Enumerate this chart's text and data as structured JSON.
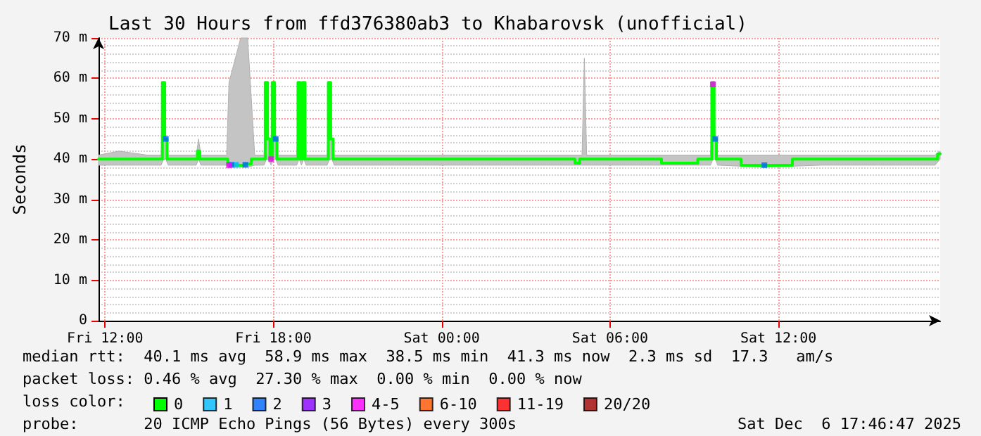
{
  "chart_data": {
    "type": "line",
    "title": "Last 30 Hours from ffd376380ab3 to Khabarovsk (unofficial)",
    "ylabel": "Seconds",
    "x": [
      "2025-12-05T11:46",
      "2025-12-05T12:30",
      "2025-12-05T13:30",
      "2025-12-05T14:00",
      "2025-12-05T14:05",
      "2025-12-05T14:10",
      "2025-12-05T14:15",
      "2025-12-05T15:15",
      "2025-12-05T15:20",
      "2025-12-05T15:25",
      "2025-12-05T16:20",
      "2025-12-05T16:25",
      "2025-12-05T16:50",
      "2025-12-05T17:05",
      "2025-12-05T17:20",
      "2025-12-05T17:40",
      "2025-12-05T17:45",
      "2025-12-05T17:50",
      "2025-12-05T17:55",
      "2025-12-05T18:00",
      "2025-12-05T18:05",
      "2025-12-05T18:10",
      "2025-12-05T18:50",
      "2025-12-05T18:55",
      "2025-12-05T19:00",
      "2025-12-05T19:05",
      "2025-12-05T19:10",
      "2025-12-05T19:55",
      "2025-12-05T20:00",
      "2025-12-05T20:05",
      "2025-12-05T20:10",
      "2025-12-05T22:00",
      "2025-12-06T00:00",
      "2025-12-06T02:00",
      "2025-12-06T04:40",
      "2025-12-06T04:50",
      "2025-12-06T05:00",
      "2025-12-06T05:05",
      "2025-12-06T05:10",
      "2025-12-06T07:00",
      "2025-12-06T08:40",
      "2025-12-06T09:35",
      "2025-12-06T09:40",
      "2025-12-06T09:45",
      "2025-12-06T09:50",
      "2025-12-06T11:30",
      "2025-12-06T13:30",
      "2025-12-06T15:30",
      "2025-12-06T17:35",
      "2025-12-06T17:46"
    ],
    "series": [
      {
        "name": "0",
        "color": "#00ff00",
        "marker": "none",
        "values": [
          40,
          40,
          40,
          40,
          59,
          45,
          40,
          40,
          42,
          40,
          40,
          38.6,
          38.5,
          38.8,
          40,
          40,
          59,
          45,
          40,
          59,
          45,
          40,
          40,
          59,
          40,
          59,
          40,
          40,
          59,
          45,
          40,
          40,
          40,
          40,
          40,
          39,
          40,
          40,
          40,
          40,
          39,
          40,
          59,
          45,
          40,
          38.5,
          40,
          40,
          40,
          41.3
        ],
        "lower": [
          38.5,
          38.5,
          38.5,
          38.5,
          40,
          40,
          38.5,
          38.5,
          40,
          38.5,
          38.5,
          38,
          38,
          38,
          38.5,
          38.5,
          40,
          40,
          38.5,
          40,
          40,
          38.5,
          38.5,
          40,
          38.5,
          40,
          38.5,
          38.5,
          40,
          40,
          38.5,
          38.5,
          38.5,
          38.5,
          38.5,
          38.5,
          38.5,
          38.5,
          38.5,
          38.5,
          38.5,
          38.5,
          40,
          40,
          38.5,
          38,
          38.5,
          38.5,
          38.5,
          40
        ],
        "upper": [
          41,
          42,
          41,
          41,
          59,
          45,
          41,
          41,
          45,
          41,
          41,
          59,
          70,
          70,
          41,
          41,
          59,
          45,
          41,
          59,
          45,
          41,
          41,
          59,
          41,
          59,
          41,
          41,
          59,
          45,
          41,
          41,
          41,
          41,
          41,
          41,
          41,
          65,
          41,
          41,
          41,
          41,
          59,
          45,
          41,
          41,
          41,
          41,
          41,
          42
        ]
      },
      {
        "name": "1",
        "type": "scatter",
        "color": "#00bbff",
        "x": [
          "2025-12-05T16:40"
        ],
        "values": [
          38.6
        ]
      },
      {
        "name": "2",
        "type": "scatter",
        "color": "#0066ff",
        "x": [
          "2025-12-05T14:10",
          "2025-12-05T16:30",
          "2025-12-05T17:00",
          "2025-12-05T18:05",
          "2025-12-06T09:45",
          "2025-12-06T11:30"
        ],
        "values": [
          45,
          38.6,
          38.6,
          45,
          45,
          38.5
        ]
      },
      {
        "name": "3",
        "type": "scatter",
        "color": "#8800ff",
        "values": [
          null,
          null,
          null,
          null,
          null,
          null,
          null,
          null,
          null,
          null,
          null,
          null,
          null,
          null,
          null,
          null,
          null,
          null,
          null,
          null,
          null,
          null,
          null,
          null,
          null,
          null,
          null,
          null,
          null,
          null,
          null,
          null,
          null,
          null,
          null,
          null,
          null,
          null,
          null,
          null,
          null,
          null,
          null,
          null,
          null,
          null,
          null,
          null,
          null,
          null
        ]
      },
      {
        "name": "4-5",
        "type": "scatter",
        "color": "#ff00ff",
        "x": [
          "2025-12-05T16:25",
          "2025-12-05T17:55",
          "2025-12-06T09:40"
        ],
        "values": [
          38.5,
          40,
          58.5
        ]
      },
      {
        "name": "6-10",
        "type": "scatter",
        "color": "#ff5500",
        "values": [
          null,
          null,
          null,
          null,
          null,
          null,
          null,
          null,
          null,
          null,
          null,
          null,
          null,
          null,
          null,
          null,
          null,
          null,
          null,
          null,
          null,
          null,
          null,
          null,
          null,
          null,
          null,
          null,
          null,
          null,
          null,
          null,
          null,
          null,
          null,
          null,
          null,
          null,
          null,
          null,
          null,
          null,
          null,
          null,
          null,
          null,
          null,
          null,
          null,
          null
        ]
      },
      {
        "name": "11-19",
        "type": "scatter",
        "color": "#ff0000",
        "values": [
          null,
          null,
          null,
          null,
          null,
          null,
          null,
          null,
          null,
          null,
          null,
          null,
          null,
          null,
          null,
          null,
          null,
          null,
          null,
          null,
          null,
          null,
          null,
          null,
          null,
          null,
          null,
          null,
          null,
          null,
          null,
          null,
          null,
          null,
          null,
          null,
          null,
          null,
          null,
          null,
          null,
          null,
          null,
          null,
          null,
          null,
          null,
          null,
          null,
          null
        ]
      },
      {
        "name": "20/20",
        "type": "scatter",
        "color": "#a10000",
        "values": [
          null,
          null,
          null,
          null,
          null,
          null,
          null,
          null,
          null,
          null,
          null,
          null,
          null,
          null,
          null,
          null,
          null,
          null,
          null,
          null,
          null,
          null,
          null,
          null,
          null,
          null,
          null,
          null,
          null,
          null,
          null,
          null,
          null,
          null,
          null,
          null,
          null,
          null,
          null,
          null,
          null,
          null,
          null,
          null,
          null,
          null,
          null,
          null,
          null,
          null
        ]
      }
    ],
    "xlim": [
      "2025-12-05T11:46",
      "2025-12-06T17:46"
    ],
    "xticks": [
      {
        "value": "2025-12-05T12:00",
        "label": "Fri 12:00"
      },
      {
        "value": "2025-12-05T18:00",
        "label": "Fri 18:00"
      },
      {
        "value": "2025-12-06T00:00",
        "label": "Sat 00:00"
      },
      {
        "value": "2025-12-06T06:00",
        "label": "Sat 06:00"
      },
      {
        "value": "2025-12-06T12:00",
        "label": "Sat 12:00"
      }
    ],
    "ylim": [
      0,
      70
    ],
    "yticks": [
      {
        "value": 0,
        "label": "0"
      },
      {
        "value": 10,
        "label": "10 m"
      },
      {
        "value": 20,
        "label": "20 m"
      },
      {
        "value": 30,
        "label": "30 m"
      },
      {
        "value": 40,
        "label": "40 m"
      },
      {
        "value": 50,
        "label": "50 m"
      },
      {
        "value": 60,
        "label": "60 m"
      },
      {
        "value": 70,
        "label": "70 m"
      }
    ],
    "grid": true,
    "legend": "bottom left",
    "legend_title": "loss color:",
    "marker": "square",
    "line_style": "solid",
    "annotations": [
      "median rtt:  40.1 ms avg  58.9 ms max  38.5 ms min  41.3 ms now  2.3 ms sd  17.3   am/s",
      "packet loss: 0.46 % avg  27.30 % max  0.00 % min  0.00 % now",
      "probe:       20 ICMP Echo Pings (56 Bytes) every 300s",
      "Sat Dec  6 17:46:47 2025"
    ]
  }
}
